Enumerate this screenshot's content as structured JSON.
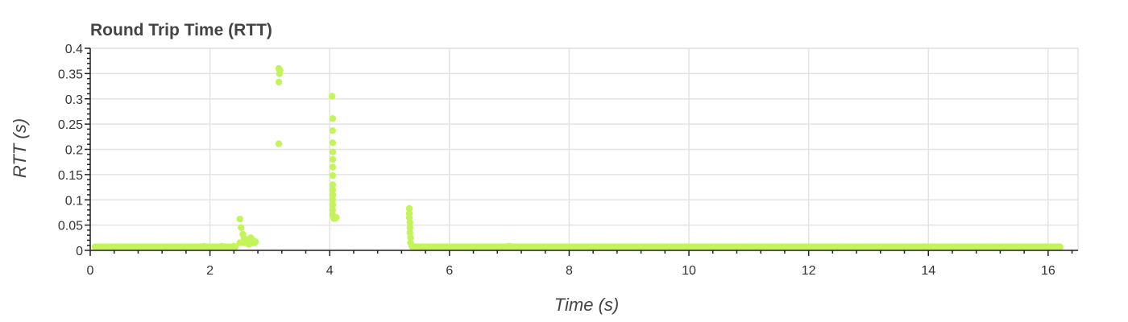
{
  "chart_data": {
    "type": "scatter",
    "title": "Round Trip Time (RTT)",
    "xlabel": "Time (s)",
    "ylabel": "RTT (s)",
    "xlim": [
      0,
      16.5
    ],
    "ylim": [
      0,
      0.4
    ],
    "x_ticks": [
      0,
      2,
      4,
      6,
      8,
      10,
      12,
      14,
      16
    ],
    "x_tick_labels": [
      "0",
      "2",
      "4",
      "6",
      "8",
      "10",
      "12",
      "14",
      "16"
    ],
    "y_ticks": [
      0,
      0.05,
      0.1,
      0.15,
      0.2,
      0.25,
      0.3,
      0.35,
      0.4
    ],
    "y_tick_labels": [
      "0",
      "0.05",
      "0.1",
      "0.15",
      "0.2",
      "0.25",
      "0.3",
      "0.35",
      "0.4"
    ],
    "grid": true,
    "legend": "none",
    "series": [
      {
        "color": "#c3f55a",
        "points": [
          [
            0.1,
            0.006
          ],
          [
            0.3,
            0.007
          ],
          [
            0.5,
            0.007
          ],
          [
            0.8,
            0.006
          ],
          [
            1.0,
            0.006
          ],
          [
            1.3,
            0.007
          ],
          [
            1.6,
            0.007
          ],
          [
            1.9,
            0.008
          ],
          [
            2.2,
            0.008
          ],
          [
            2.4,
            0.008
          ],
          [
            2.5,
            0.062
          ],
          [
            2.52,
            0.045
          ],
          [
            2.55,
            0.032
          ],
          [
            2.57,
            0.025
          ],
          [
            2.6,
            0.02
          ],
          [
            2.62,
            0.015
          ],
          [
            2.65,
            0.012
          ],
          [
            2.68,
            0.025
          ],
          [
            2.7,
            0.022
          ],
          [
            2.73,
            0.018
          ],
          [
            2.76,
            0.017
          ],
          [
            3.15,
            0.36
          ],
          [
            3.17,
            0.356
          ],
          [
            3.16,
            0.35
          ],
          [
            3.15,
            0.333
          ],
          [
            3.15,
            0.211
          ],
          [
            4.04,
            0.305
          ],
          [
            4.05,
            0.261
          ],
          [
            4.05,
            0.237
          ],
          [
            4.05,
            0.213
          ],
          [
            4.05,
            0.195
          ],
          [
            4.05,
            0.18
          ],
          [
            4.05,
            0.165
          ],
          [
            4.05,
            0.148
          ],
          [
            4.05,
            0.13
          ],
          [
            4.05,
            0.12
          ],
          [
            4.05,
            0.11
          ],
          [
            4.05,
            0.1
          ],
          [
            4.05,
            0.09
          ],
          [
            4.05,
            0.08
          ],
          [
            4.05,
            0.07
          ],
          [
            4.07,
            0.063
          ],
          [
            4.09,
            0.063
          ],
          [
            4.11,
            0.065
          ],
          [
            5.33,
            0.083
          ],
          [
            5.33,
            0.073
          ],
          [
            5.33,
            0.065
          ],
          [
            5.34,
            0.055
          ],
          [
            5.34,
            0.045
          ],
          [
            5.34,
            0.035
          ],
          [
            5.35,
            0.025
          ],
          [
            5.35,
            0.015
          ],
          [
            5.37,
            0.009
          ],
          [
            5.6,
            0.007
          ],
          [
            6.0,
            0.007
          ],
          [
            6.5,
            0.007
          ],
          [
            7.0,
            0.008
          ],
          [
            7.5,
            0.007
          ],
          [
            8.0,
            0.007
          ],
          [
            8.5,
            0.007
          ],
          [
            9.0,
            0.007
          ],
          [
            9.5,
            0.007
          ],
          [
            10.0,
            0.007
          ],
          [
            10.5,
            0.007
          ],
          [
            11.0,
            0.007
          ],
          [
            11.5,
            0.007
          ],
          [
            12.0,
            0.007
          ],
          [
            12.5,
            0.007
          ],
          [
            13.0,
            0.007
          ],
          [
            13.5,
            0.007
          ],
          [
            14.0,
            0.007
          ],
          [
            14.5,
            0.007
          ],
          [
            15.0,
            0.007
          ],
          [
            15.5,
            0.007
          ],
          [
            16.0,
            0.007
          ],
          [
            16.2,
            0.006
          ]
        ]
      }
    ]
  }
}
